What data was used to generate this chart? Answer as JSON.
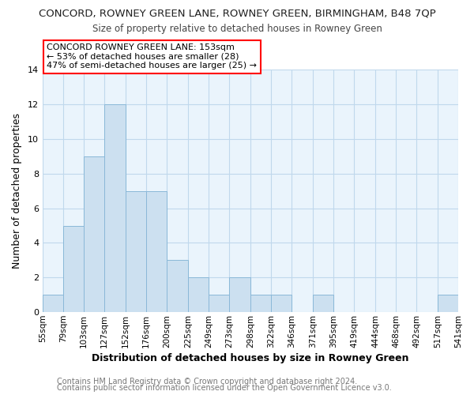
{
  "title": "CONCORD, ROWNEY GREEN LANE, ROWNEY GREEN, BIRMINGHAM, B48 7QP",
  "subtitle": "Size of property relative to detached houses in Rowney Green",
  "xlabel": "Distribution of detached houses by size in Rowney Green",
  "ylabel": "Number of detached properties",
  "footer_line1": "Contains HM Land Registry data © Crown copyright and database right 2024.",
  "footer_line2": "Contains public sector information licensed under the Open Government Licence v3.0.",
  "annotation_title": "CONCORD ROWNEY GREEN LANE: 153sqm",
  "annotation_line2": "← 53% of detached houses are smaller (28)",
  "annotation_line3": "47% of semi-detached houses are larger (25) →",
  "bar_color": "#cce0f0",
  "bar_edge_color": "#8ab8d8",
  "grid_color": "#c0d8ec",
  "background_color": "#ffffff",
  "plot_bg_color": "#eaf4fc",
  "bins": [
    55,
    79,
    103,
    127,
    152,
    176,
    200,
    225,
    249,
    273,
    298,
    322,
    346,
    371,
    395,
    419,
    444,
    468,
    492,
    517,
    541
  ],
  "counts": [
    1,
    5,
    9,
    12,
    7,
    7,
    3,
    2,
    1,
    2,
    1,
    1,
    0,
    1,
    0,
    0,
    0,
    0,
    0,
    1
  ],
  "ylim": [
    0,
    14
  ],
  "yticks": [
    0,
    2,
    4,
    6,
    8,
    10,
    12,
    14
  ],
  "tick_labels": [
    "55sqm",
    "79sqm",
    "103sqm",
    "127sqm",
    "152sqm",
    "176sqm",
    "200sqm",
    "225sqm",
    "249sqm",
    "273sqm",
    "298sqm",
    "322sqm",
    "346sqm",
    "371sqm",
    "395sqm",
    "419sqm",
    "444sqm",
    "468sqm",
    "492sqm",
    "517sqm",
    "541sqm"
  ],
  "title_fontsize": 9.5,
  "subtitle_fontsize": 8.5,
  "xlabel_fontsize": 9,
  "ylabel_fontsize": 9,
  "annotation_fontsize": 8,
  "footer_fontsize": 7
}
